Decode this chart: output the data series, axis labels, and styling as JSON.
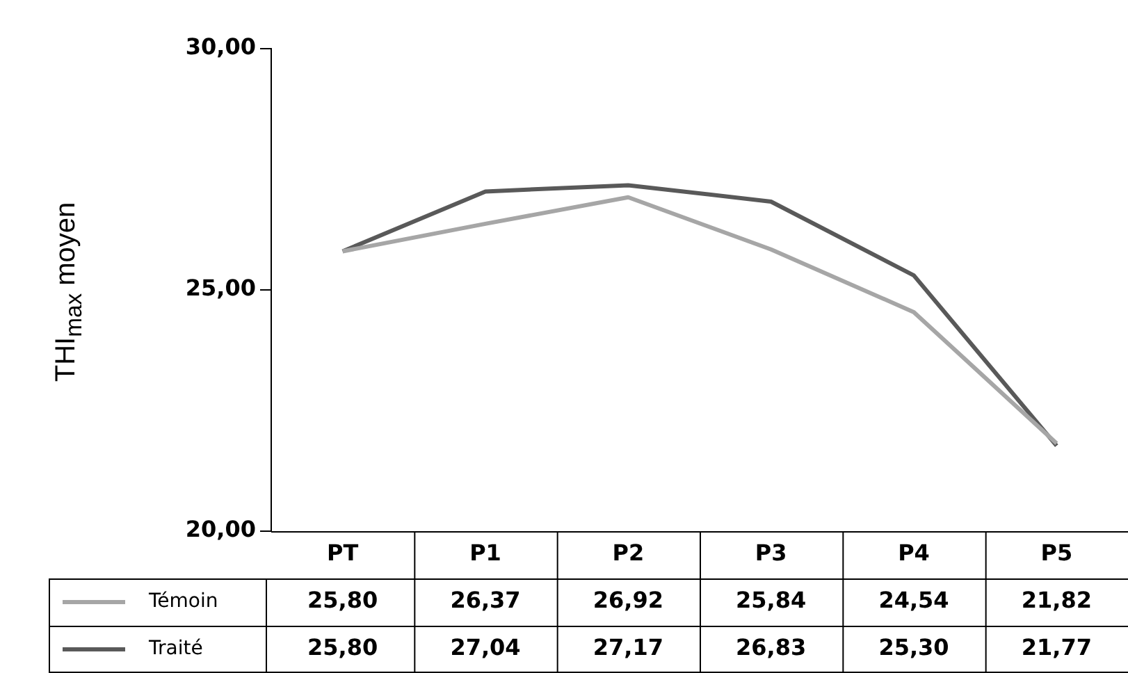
{
  "chart_data": {
    "type": "line",
    "ylabel": "THI$_{max}$ moyen",
    "categories": [
      "PT",
      "P1",
      "P2",
      "P3",
      "P4",
      "P5"
    ],
    "series": [
      {
        "name": "Témoin",
        "color": "#a6a6a6",
        "values": [
          25.8,
          26.37,
          26.92,
          25.84,
          24.54,
          21.82
        ],
        "value_labels": [
          "25,80",
          "26,37",
          "26,92",
          "25,84",
          "24,54",
          "21,82"
        ]
      },
      {
        "name": "Traité",
        "color": "#595959",
        "values": [
          25.8,
          27.04,
          27.17,
          26.83,
          25.3,
          21.77
        ],
        "value_labels": [
          "25,80",
          "27,04",
          "27,17",
          "26,83",
          "25,30",
          "21,77"
        ]
      }
    ],
    "ylim": [
      20,
      30
    ],
    "yticks": [
      {
        "value": 20,
        "label": "20,00"
      },
      {
        "value": 25,
        "label": "25,00"
      },
      {
        "value": 30,
        "label": "30,00"
      }
    ],
    "grid": false,
    "legend": "bottom left",
    "marker": "none",
    "line_style": "solid"
  }
}
